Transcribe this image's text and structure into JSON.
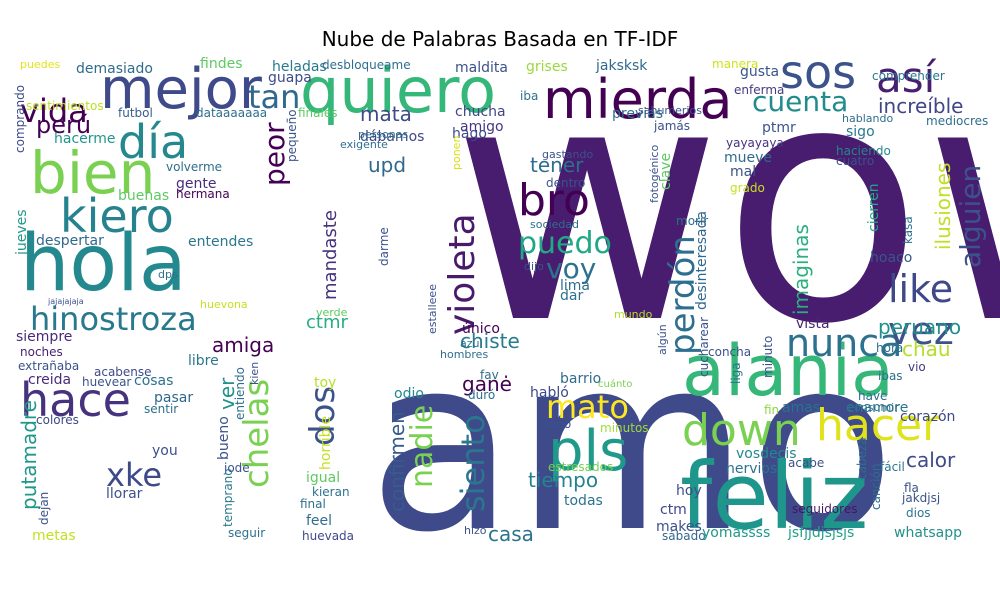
{
  "title": "Nube de Palabras Basada en TF-IDF",
  "words": [
    {
      "text": "wow",
      "color": "#481c6e"
    },
    {
      "text": "amo",
      "color": "#3e4a89"
    },
    {
      "text": "hola",
      "color": "#23898e"
    },
    {
      "text": "alania",
      "color": "#35b779"
    },
    {
      "text": "feliz",
      "color": "#1f968b"
    },
    {
      "text": "mejor",
      "color": "#3e4a89"
    },
    {
      "text": "quiero",
      "color": "#35b779"
    },
    {
      "text": "mierda",
      "color": "#440154"
    },
    {
      "text": "bien",
      "color": "#7ad151"
    },
    {
      "text": "kiero",
      "color": "#26828e"
    },
    {
      "text": "hace",
      "color": "#46327e"
    },
    {
      "text": "día",
      "color": "#23898e"
    },
    {
      "text": "hinostroza",
      "color": "#29798e"
    },
    {
      "text": "sos",
      "color": "#3b528b"
    },
    {
      "text": "así",
      "color": "#481f70"
    },
    {
      "text": "tan",
      "color": "#31688e"
    },
    {
      "text": "vida",
      "color": "#440154"
    },
    {
      "text": "perú",
      "color": "#440154"
    },
    {
      "text": "bro",
      "color": "#440154"
    },
    {
      "text": "puedo",
      "color": "#22a884"
    },
    {
      "text": "voy",
      "color": "#2c728e"
    },
    {
      "text": "violeta",
      "color": "#481a6c"
    },
    {
      "text": "pls",
      "color": "#1f9a8a"
    },
    {
      "text": "down",
      "color": "#7ad151"
    },
    {
      "text": "hacer",
      "color": "#e0e31c"
    },
    {
      "text": "nunca",
      "color": "#2c728e"
    },
    {
      "text": "like",
      "color": "#3e4989"
    },
    {
      "text": "vez",
      "color": "#3b528b"
    },
    {
      "text": "cuenta",
      "color": "#228c8d"
    },
    {
      "text": "alguien",
      "color": "#3b528b"
    },
    {
      "text": "increíble",
      "color": "#404688"
    },
    {
      "text": "perdón",
      "color": "#2e6e8e"
    },
    {
      "text": "xke",
      "color": "#3e4989"
    },
    {
      "text": "chelas",
      "color": "#7ad151"
    },
    {
      "text": "dos",
      "color": "#3b528b"
    },
    {
      "text": "mato",
      "color": "#fde725"
    },
    {
      "text": "siento",
      "color": "#2a768e"
    },
    {
      "text": "nadie",
      "color": "#7ad151"
    },
    {
      "text": "peor",
      "color": "#440154"
    },
    {
      "text": "mata",
      "color": "#3e4989"
    },
    {
      "text": "upd",
      "color": "#31688e"
    },
    {
      "text": "tener",
      "color": "#2e6e8e"
    },
    {
      "text": "chiste",
      "color": "#287c8e"
    },
    {
      "text": "amiga",
      "color": "#440154"
    },
    {
      "text": "ilusiones",
      "color": "#c0df25"
    },
    {
      "text": "peruano",
      "color": "#21918c"
    },
    {
      "text": "chau",
      "color": "#b5de2b"
    },
    {
      "text": "calor",
      "color": "#3e4a89"
    },
    {
      "text": "tiempo",
      "color": "#26828e"
    },
    {
      "text": "ganė",
      "color": "#440154"
    },
    {
      "text": "casa",
      "color": "#2c728e"
    },
    {
      "text": "confirmen",
      "color": "#365c8d"
    },
    {
      "text": "putamadre",
      "color": "#1f988b"
    },
    {
      "text": "mandaste",
      "color": "#46337e"
    },
    {
      "text": "ctmr",
      "color": "#27ad81"
    },
    {
      "text": "imaginas",
      "color": "#2ab07f"
    },
    {
      "text": "ver",
      "color": "#21918c"
    },
    {
      "text": "despertar",
      "color": "#31688e"
    },
    {
      "text": "entendes",
      "color": "#2a778e"
    },
    {
      "text": "siempre",
      "color": "#482878"
    },
    {
      "text": "demasiado",
      "color": "#2f6c8e"
    },
    {
      "text": "findes",
      "color": "#5ec962"
    },
    {
      "text": "maldita",
      "color": "#3b528b"
    },
    {
      "text": "heladas",
      "color": "#29798e"
    },
    {
      "text": "grises",
      "color": "#9bd93c"
    },
    {
      "text": "jaksksk",
      "color": "#31688e"
    },
    {
      "text": "chucha",
      "color": "#404688"
    },
    {
      "text": "amigo",
      "color": "#453781"
    },
    {
      "text": "hago",
      "color": "#3e4a89"
    },
    {
      "text": "dábamos",
      "color": "#3f4788"
    },
    {
      "text": "previas",
      "color": "#2e6e8e"
    },
    {
      "text": "gente",
      "color": "#472c7a"
    },
    {
      "text": "buenas",
      "color": "#5ec962"
    },
    {
      "text": "hermana",
      "color": "#440154"
    },
    {
      "text": "volverme",
      "color": "#2e6d8e"
    },
    {
      "text": "jueves",
      "color": "#1f988b"
    },
    {
      "text": "comprando",
      "color": "#3e4a89"
    },
    {
      "text": "sentimientos",
      "color": "#bddf26"
    },
    {
      "text": "hacerme",
      "color": "#1f968b"
    },
    {
      "text": "fútbol",
      "color": "#365d8d"
    },
    {
      "text": "puedes",
      "color": "#e5e419"
    },
    {
      "text": "guapa",
      "color": "#3e4a89"
    },
    {
      "text": "gusta",
      "color": "#39568c"
    },
    {
      "text": "enferma",
      "color": "#443983"
    },
    {
      "text": "manera",
      "color": "#d0e11c"
    },
    {
      "text": "comprender",
      "color": "#2b758e"
    },
    {
      "text": "sigo",
      "color": "#29798e"
    },
    {
      "text": "ptmr",
      "color": "#3a548c"
    },
    {
      "text": "mediocres",
      "color": "#2e6e8e"
    },
    {
      "text": "haciendo",
      "color": "#23888e"
    },
    {
      "text": "cuatro",
      "color": "#3b528b"
    },
    {
      "text": "yayayaya",
      "color": "#46327e"
    },
    {
      "text": "mueve",
      "color": "#2f6b8e"
    },
    {
      "text": "mal",
      "color": "#3b528b"
    },
    {
      "text": "grado",
      "color": "#c8e020"
    },
    {
      "text": "cierren",
      "color": "#22a884"
    },
    {
      "text": "kasa",
      "color": "#2c728e"
    },
    {
      "text": "hoaco",
      "color": "#38588c"
    },
    {
      "text": "vista",
      "color": "#482576"
    },
    {
      "text": "minuto",
      "color": "#3b528b"
    },
    {
      "text": "vio",
      "color": "#443a83"
    },
    {
      "text": "ibas",
      "color": "#2e6e8e"
    },
    {
      "text": "hora",
      "color": "#2e6e8e"
    },
    {
      "text": "corazón",
      "color": "#3e4989"
    },
    {
      "text": "enamore",
      "color": "#2a768e"
    },
    {
      "text": "amas",
      "color": "#2d708e"
    },
    {
      "text": "fin",
      "color": "#8fd744"
    },
    {
      "text": "nervios",
      "color": "#2c728e"
    },
    {
      "text": "vosdecis",
      "color": "#23888e"
    },
    {
      "text": "acabe",
      "color": "#3b528b"
    },
    {
      "text": "fácil",
      "color": "#2a768e"
    },
    {
      "text": "fla",
      "color": "#3b528b"
    },
    {
      "text": "jakdjsj",
      "color": "#3b528b"
    },
    {
      "text": "dios",
      "color": "#2a768e"
    },
    {
      "text": "seguidores",
      "color": "#481467"
    },
    {
      "text": "hoy",
      "color": "#3b528b"
    },
    {
      "text": "ctm",
      "color": "#3f4788"
    },
    {
      "text": "makes",
      "color": "#3b528b"
    },
    {
      "text": "sábado",
      "color": "#31688e"
    },
    {
      "text": "yomassss",
      "color": "#1f988b"
    },
    {
      "text": "jsfjjdjsjsjs",
      "color": "#1fa088"
    },
    {
      "text": "whatsapp",
      "color": "#21918c"
    },
    {
      "text": "todas",
      "color": "#2c728e"
    },
    {
      "text": "estresados",
      "color": "#75d054"
    },
    {
      "text": "minutos",
      "color": "#a2da37"
    },
    {
      "text": "lindo",
      "color": "#3b528b"
    },
    {
      "text": "habló",
      "color": "#3e4989"
    },
    {
      "text": "barrio",
      "color": "#2f6c8e"
    },
    {
      "text": "cuánto",
      "color": "#7ad151"
    },
    {
      "text": "fav",
      "color": "#2e6e8e"
    },
    {
      "text": "duró",
      "color": "#2c728e"
    },
    {
      "text": "odio",
      "color": "#23888e"
    },
    {
      "text": "toy",
      "color": "#b8de29"
    },
    {
      "text": "horrible",
      "color": "#c5e021"
    },
    {
      "text": "igual",
      "color": "#5ec962"
    },
    {
      "text": "kieran",
      "color": "#2c728e"
    },
    {
      "text": "final",
      "color": "#2d708e"
    },
    {
      "text": "feel",
      "color": "#2e6e8e"
    },
    {
      "text": "huevada",
      "color": "#3e4989"
    },
    {
      "text": "seguir",
      "color": "#2c728e"
    },
    {
      "text": "metas",
      "color": "#c2df23"
    },
    {
      "text": "dejan",
      "color": "#3b528b"
    },
    {
      "text": "llorar",
      "color": "#3b528b"
    },
    {
      "text": "you",
      "color": "#3b528b"
    },
    {
      "text": "jode",
      "color": "#3b528b"
    },
    {
      "text": "temprano",
      "color": "#29798e"
    },
    {
      "text": "bueno",
      "color": "#3b528b"
    },
    {
      "text": "pasar",
      "color": "#31688e"
    },
    {
      "text": "sentir",
      "color": "#2c728e"
    },
    {
      "text": "cosas",
      "color": "#2c728e"
    },
    {
      "text": "huevear",
      "color": "#3b528b"
    },
    {
      "text": "acabense",
      "color": "#3e4989"
    },
    {
      "text": "colores",
      "color": "#3e4989"
    },
    {
      "text": "creida",
      "color": "#472d7b"
    },
    {
      "text": "extrañaba",
      "color": "#3b528b"
    },
    {
      "text": "noches",
      "color": "#481f70"
    },
    {
      "text": "libre",
      "color": "#29798e"
    },
    {
      "text": "entiendo",
      "color": "#2e6e8e"
    },
    {
      "text": "kien",
      "color": "#3b528b"
    },
    {
      "text": "único",
      "color": "#440154"
    },
    {
      "text": "hombres",
      "color": "#2e6e8e"
    },
    {
      "text": "azul",
      "color": "#2c728e"
    },
    {
      "text": "estalleee",
      "color": "#3b528b"
    },
    {
      "text": "verde",
      "color": "#5ec962"
    },
    {
      "text": "dar",
      "color": "#2c728e"
    },
    {
      "text": "lima",
      "color": "#2e6e8e"
    },
    {
      "text": "dijo",
      "color": "#3b528b"
    },
    {
      "text": "darme",
      "color": "#3b528b"
    },
    {
      "text": "sociedad",
      "color": "#2e6e8e"
    },
    {
      "text": "dentro",
      "color": "#3b528b"
    },
    {
      "text": "gastando",
      "color": "#3b528b"
    },
    {
      "text": "clave",
      "color": "#5ec962"
    },
    {
      "text": "fotogénico",
      "color": "#3b528b"
    },
    {
      "text": "morir",
      "color": "#2e6e8e"
    },
    {
      "text": "desinteresada",
      "color": "#31688e"
    },
    {
      "text": "canción",
      "color": "#2e6e8e"
    },
    {
      "text": "cabeza",
      "color": "#2e6e8e"
    },
    {
      "text": "liga",
      "color": "#2c728e"
    },
    {
      "text": "cucharear",
      "color": "#3b528b"
    },
    {
      "text": "concha",
      "color": "#3b528b"
    },
    {
      "text": "algún",
      "color": "#3b528b"
    },
    {
      "text": "mundo",
      "color": "#b5de2b"
    },
    {
      "text": "huevona",
      "color": "#c8e020"
    },
    {
      "text": "dps",
      "color": "#2e6e8e"
    },
    {
      "text": "jajajajaja",
      "color": "#3b528b"
    },
    {
      "text": "ponen",
      "color": "#d8e219"
    },
    {
      "text": "exigente",
      "color": "#2e6e8e"
    },
    {
      "text": "personas",
      "color": "#2e6e8e"
    },
    {
      "text": "desbloqueame",
      "color": "#2e6e8e"
    },
    {
      "text": "iba",
      "color": "#2c728e"
    },
    {
      "text": "pequeño",
      "color": "#3b528b"
    },
    {
      "text": "finales",
      "color": "#5ec962"
    },
    {
      "text": "dataaaaaaa",
      "color": "#2e6e8e"
    },
    {
      "text": "jamás",
      "color": "#3b528b"
    },
    {
      "text": "sahumerios",
      "color": "#3b528b"
    },
    {
      "text": "hablando",
      "color": "#2e6e8e"
    },
    {
      "text": "have",
      "color": "#2e6e8e"
    },
    {
      "text": "consumir",
      "color": "#2e6e8e"
    },
    {
      "text": "hizo",
      "color": "#3b528b"
    }
  ]
}
